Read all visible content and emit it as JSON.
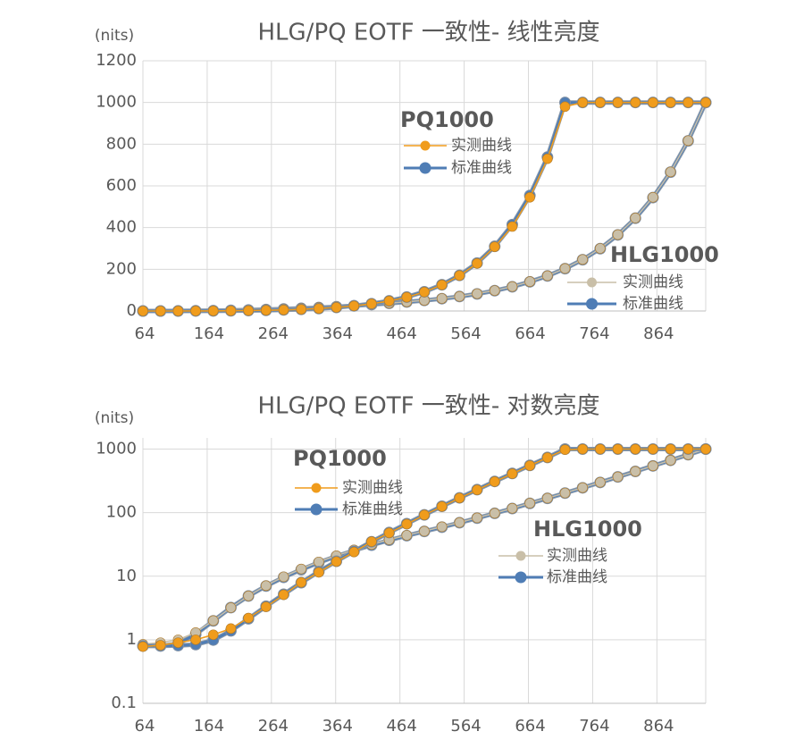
{
  "chart_data": [
    {
      "type": "line",
      "title": "HLG/PQ EOTF 一致性- 线性亮度",
      "y_label": "(nits)",
      "x": [
        64,
        91.375,
        118.75,
        146.125,
        173.5,
        200.875,
        228.25,
        255.625,
        283,
        310.375,
        337.75,
        365.125,
        392.5,
        419.875,
        447.25,
        474.625,
        502,
        529.375,
        556.75,
        584.125,
        611.5,
        638.875,
        666.25,
        693.625,
        721,
        748.375,
        775.75,
        803.125,
        830.5,
        857.875,
        885.25,
        912.625,
        940
      ],
      "xlim": [
        64,
        940
      ],
      "xticks": [
        64,
        164,
        264,
        364,
        464,
        564,
        664,
        764,
        864
      ],
      "ylim": [
        0,
        1200
      ],
      "yticks": [
        0,
        200,
        400,
        600,
        800,
        1000,
        1200
      ],
      "log_y": false,
      "grid": true,
      "series": [
        {
          "group": "HLG1000",
          "name": "标准曲线",
          "color": "#4f7db5",
          "values": [
            0,
            0.07,
            0.34,
            0.91,
            1.82,
            3.11,
            4.82,
            6.97,
            9.6,
            12.7,
            16.4,
            20.6,
            25.4,
            30.8,
            36.8,
            43.4,
            50.7,
            59.1,
            69.4,
            82,
            97.5,
            116,
            140,
            168,
            203,
            246,
            299,
            365,
            445,
            544,
            666,
            816,
            1000
          ]
        },
        {
          "group": "HLG1000",
          "name": "实测曲线",
          "color": "#c9bfa8",
          "values": [
            0,
            0.07,
            0.35,
            0.9,
            1.8,
            3.1,
            4.8,
            7,
            9.7,
            12.9,
            16.7,
            21,
            26,
            31.5,
            37.5,
            44,
            51,
            60,
            70,
            83,
            98,
            117,
            141,
            169,
            204,
            247,
            300,
            366,
            446,
            545,
            667,
            817,
            1000
          ]
        },
        {
          "group": "PQ1000",
          "name": "标准曲线",
          "color": "#4f7db5",
          "values": [
            0,
            0.02,
            0.1,
            0.27,
            0.59,
            1.13,
            1.98,
            3.27,
            5.16,
            7.9,
            11.8,
            17.2,
            24.7,
            34.8,
            48.6,
            67.1,
            92.3,
            126,
            171,
            230,
            310,
            414,
            554,
            738,
            1000,
            1000,
            1000,
            1000,
            1000,
            1000,
            1000,
            1000,
            1000
          ]
        },
        {
          "group": "PQ1000",
          "name": "实测曲线",
          "color": "#f09c1c",
          "values": [
            0,
            0.02,
            0.1,
            0.27,
            0.6,
            1.1,
            2,
            3.3,
            5.2,
            7.9,
            11.8,
            17.2,
            24.5,
            34.5,
            48,
            66,
            91,
            125,
            170,
            228,
            308,
            405,
            545,
            730,
            980,
            1000,
            1000,
            1000,
            1000,
            1000,
            1000,
            1000,
            1000
          ]
        }
      ]
    },
    {
      "type": "line",
      "title": "HLG/PQ EOTF 一致性- 对数亮度",
      "y_label": "(nits)",
      "x": [
        64,
        91.375,
        118.75,
        146.125,
        173.5,
        200.875,
        228.25,
        255.625,
        283,
        310.375,
        337.75,
        365.125,
        392.5,
        419.875,
        447.25,
        474.625,
        502,
        529.375,
        556.75,
        584.125,
        611.5,
        638.875,
        666.25,
        693.625,
        721,
        748.375,
        775.75,
        803.125,
        830.5,
        857.875,
        885.25,
        912.625,
        940
      ],
      "xlim": [
        64,
        940
      ],
      "xticks": [
        64,
        164,
        264,
        364,
        464,
        564,
        664,
        764,
        864
      ],
      "ylim": [
        0.1,
        1500
      ],
      "yticks": [
        0.1,
        1,
        10,
        100,
        1000
      ],
      "log_y": true,
      "grid": true,
      "series": [
        {
          "group": "HLG1000",
          "name": "标准曲线",
          "color": "#4f7db5",
          "values": [
            0.8,
            0.8,
            0.87,
            1.22,
            1.98,
            3.21,
            4.89,
            7,
            9.6,
            12.7,
            16.4,
            20.6,
            25.4,
            30.8,
            36.8,
            43.4,
            50.7,
            59.1,
            69.4,
            82,
            97.5,
            116,
            140,
            168,
            203,
            246,
            299,
            365,
            445,
            544,
            666,
            816,
            1000
          ]
        },
        {
          "group": "HLG1000",
          "name": "实测曲线",
          "color": "#c9bfa8",
          "values": [
            0.85,
            0.9,
            1,
            1.3,
            2,
            3.2,
            4.9,
            7.1,
            9.8,
            13,
            16.8,
            21,
            26,
            31.5,
            37.5,
            44,
            51,
            60,
            70,
            83,
            98,
            117,
            141,
            169,
            204,
            247,
            300,
            366,
            446,
            545,
            667,
            817,
            1000
          ]
        },
        {
          "group": "PQ1000",
          "name": "标准曲线",
          "color": "#4f7db5",
          "values": [
            0.8,
            0.8,
            0.81,
            0.84,
            0.99,
            1.38,
            2.14,
            3.37,
            5.2,
            7.9,
            11.8,
            17.2,
            24.7,
            34.8,
            48.6,
            67.1,
            92.3,
            126,
            171,
            230,
            310,
            414,
            554,
            738,
            1000,
            1000,
            1000,
            1000,
            1000,
            1000,
            1000,
            1000,
            1000
          ]
        },
        {
          "group": "PQ1000",
          "name": "实测曲线",
          "color": "#f09c1c",
          "values": [
            0.78,
            0.82,
            0.9,
            1,
            1.2,
            1.5,
            2.2,
            3.3,
            5.1,
            8,
            11.5,
            17,
            24,
            35,
            48,
            66,
            92,
            125,
            170,
            228,
            308,
            410,
            550,
            735,
            980,
            1000,
            1000,
            1000,
            1000,
            1000,
            1000,
            1000,
            1000
          ]
        }
      ]
    }
  ]
}
